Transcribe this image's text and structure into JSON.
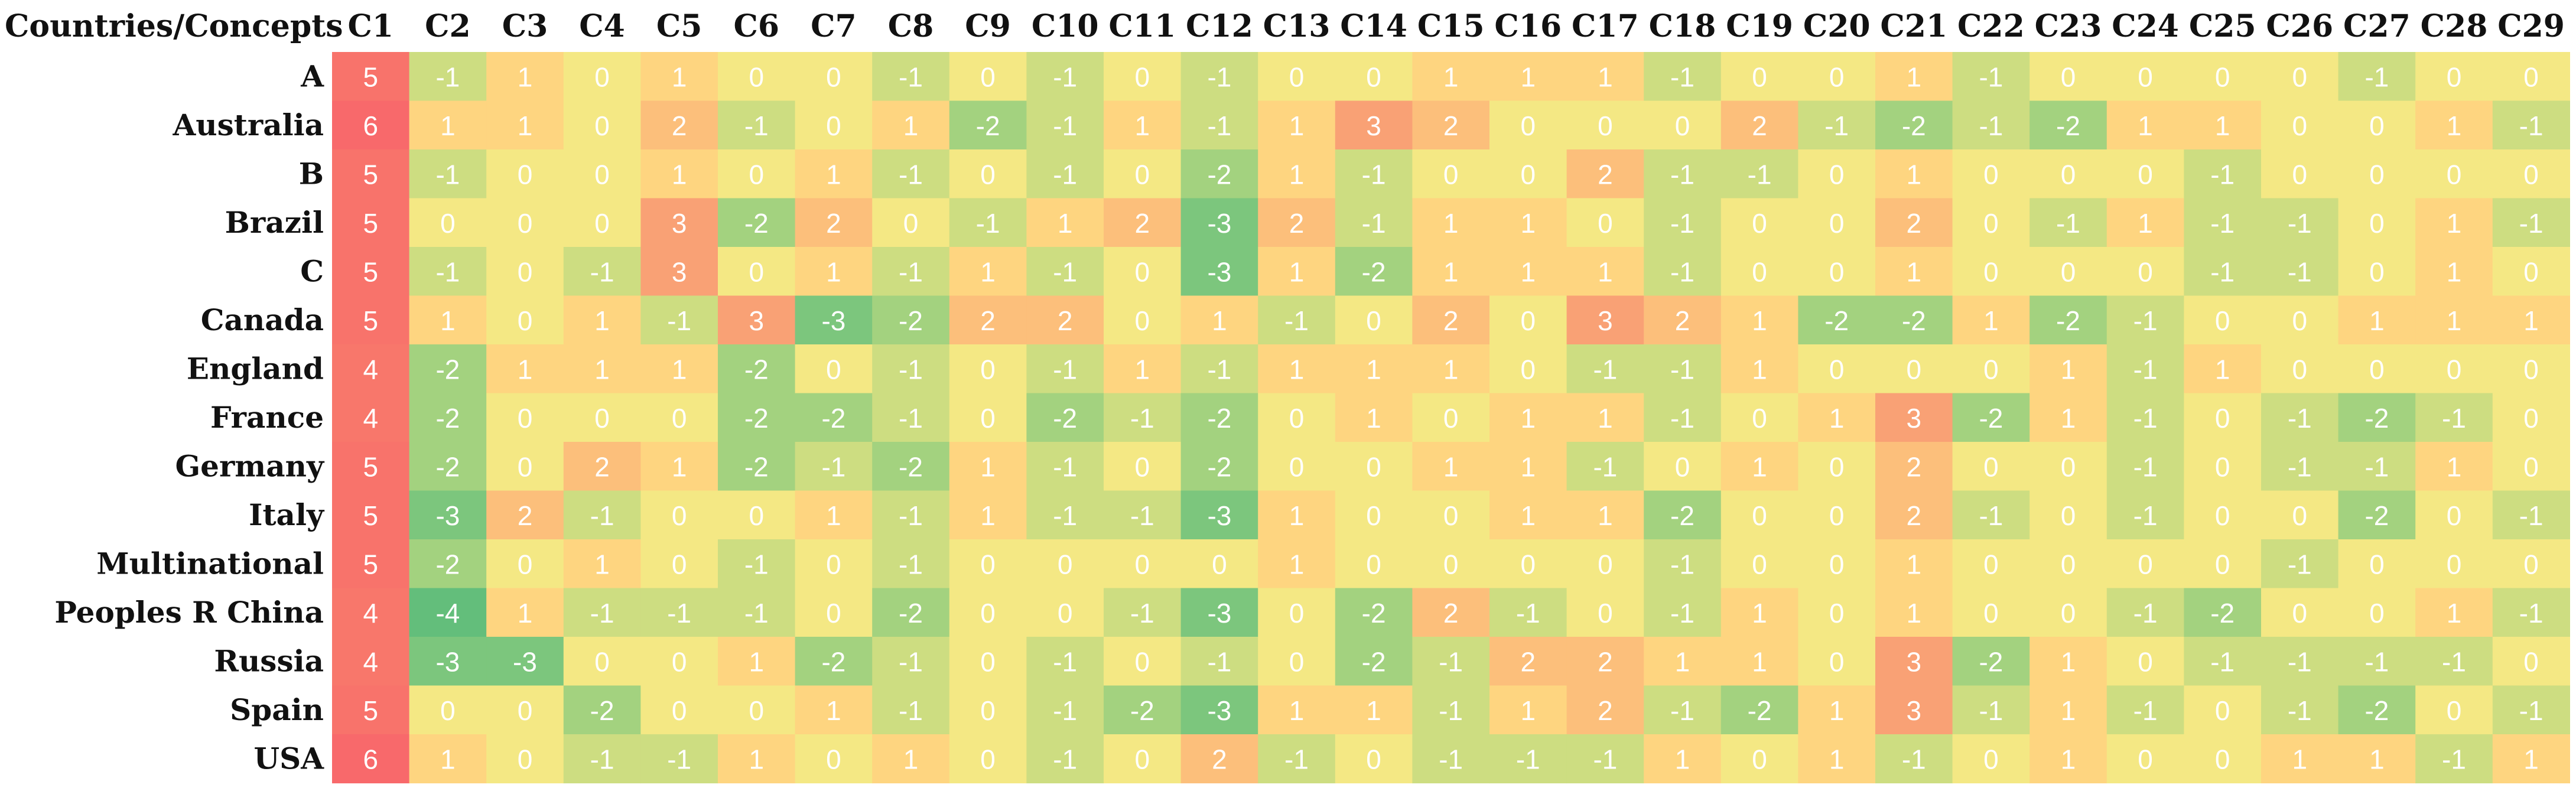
{
  "chart_data": {
    "type": "heatmap",
    "corner_label": "Countries/Concepts",
    "columns": [
      "C1",
      "C2",
      "C3",
      "C4",
      "C5",
      "C6",
      "C7",
      "C8",
      "C9",
      "C10",
      "C11",
      "C12",
      "C13",
      "C14",
      "C15",
      "C16",
      "C17",
      "C18",
      "C19",
      "C20",
      "C21",
      "C22",
      "C23",
      "C24",
      "C25",
      "C26",
      "C27",
      "C28",
      "C29"
    ],
    "rows": [
      "A",
      "Australia",
      "B",
      "Brazil",
      "C",
      "Canada",
      "England",
      "France",
      "Germany",
      "Italy",
      "Multinational",
      "Peoples R China",
      "Russia",
      "Spain",
      "USA"
    ],
    "values": [
      [
        5,
        -1,
        1,
        0,
        1,
        0,
        0,
        -1,
        0,
        -1,
        0,
        -1,
        0,
        0,
        1,
        1,
        1,
        -1,
        0,
        0,
        1,
        -1,
        0,
        0,
        0,
        0,
        -1,
        0,
        0
      ],
      [
        6,
        1,
        1,
        0,
        2,
        -1,
        0,
        1,
        -2,
        -1,
        1,
        -1,
        1,
        3,
        2,
        0,
        0,
        0,
        2,
        -1,
        -2,
        -1,
        -2,
        1,
        1,
        0,
        0,
        1,
        -1
      ],
      [
        5,
        -1,
        0,
        0,
        1,
        0,
        1,
        -1,
        0,
        -1,
        0,
        -2,
        1,
        -1,
        0,
        0,
        2,
        -1,
        -1,
        0,
        1,
        0,
        0,
        0,
        -1,
        0,
        0,
        0,
        0
      ],
      [
        5,
        0,
        0,
        0,
        3,
        -2,
        2,
        0,
        -1,
        1,
        2,
        -3,
        2,
        -1,
        1,
        1,
        0,
        -1,
        0,
        0,
        2,
        0,
        -1,
        1,
        -1,
        -1,
        0,
        1,
        -1
      ],
      [
        5,
        -1,
        0,
        -1,
        3,
        0,
        1,
        -1,
        1,
        -1,
        0,
        -3,
        1,
        -2,
        1,
        1,
        1,
        -1,
        0,
        0,
        1,
        0,
        0,
        0,
        -1,
        -1,
        0,
        1,
        0
      ],
      [
        5,
        1,
        0,
        1,
        -1,
        3,
        -3,
        -2,
        2,
        2,
        0,
        1,
        -1,
        0,
        2,
        0,
        3,
        2,
        1,
        -2,
        -2,
        1,
        -2,
        -1,
        0,
        0,
        1,
        1,
        1
      ],
      [
        4,
        -2,
        1,
        1,
        1,
        -2,
        0,
        -1,
        0,
        -1,
        1,
        -1,
        1,
        1,
        1,
        0,
        -1,
        -1,
        1,
        0,
        0,
        0,
        1,
        -1,
        1,
        0,
        0,
        0,
        0
      ],
      [
        4,
        -2,
        0,
        0,
        0,
        -2,
        -2,
        -1,
        0,
        -2,
        -1,
        -2,
        0,
        1,
        0,
        1,
        1,
        -1,
        0,
        1,
        3,
        -2,
        1,
        -1,
        0,
        -1,
        -2,
        -1,
        0
      ],
      [
        5,
        -2,
        0,
        2,
        1,
        -2,
        -1,
        -2,
        1,
        -1,
        0,
        -2,
        0,
        0,
        1,
        1,
        -1,
        0,
        1,
        0,
        2,
        0,
        0,
        -1,
        0,
        -1,
        -1,
        1,
        0
      ],
      [
        5,
        -3,
        2,
        -1,
        0,
        0,
        1,
        -1,
        1,
        -1,
        -1,
        -3,
        1,
        0,
        0,
        1,
        1,
        -2,
        0,
        0,
        2,
        -1,
        0,
        -1,
        0,
        0,
        -2,
        0,
        -1
      ],
      [
        5,
        -2,
        0,
        1,
        0,
        -1,
        0,
        -1,
        0,
        0,
        0,
        0,
        1,
        0,
        0,
        0,
        0,
        -1,
        0,
        0,
        1,
        0,
        0,
        0,
        0,
        -1,
        0,
        0,
        0
      ],
      [
        4,
        -4,
        1,
        -1,
        -1,
        -1,
        0,
        -2,
        0,
        0,
        -1,
        -3,
        0,
        -2,
        2,
        -1,
        0,
        -1,
        1,
        0,
        1,
        0,
        0,
        -1,
        -2,
        0,
        0,
        1,
        -1
      ],
      [
        4,
        -3,
        -3,
        0,
        0,
        1,
        -2,
        -1,
        0,
        -1,
        0,
        -1,
        0,
        -2,
        -1,
        2,
        2,
        1,
        1,
        0,
        3,
        -2,
        1,
        0,
        -1,
        -1,
        -1,
        -1,
        0
      ],
      [
        5,
        0,
        0,
        -2,
        0,
        0,
        1,
        -1,
        0,
        -1,
        -2,
        -3,
        1,
        1,
        -1,
        1,
        2,
        -1,
        -2,
        1,
        3,
        -1,
        1,
        -1,
        0,
        -1,
        -2,
        0,
        -1
      ],
      [
        6,
        1,
        0,
        -1,
        -1,
        1,
        0,
        1,
        0,
        -1,
        0,
        2,
        -1,
        0,
        -1,
        -1,
        -1,
        1,
        0,
        1,
        -1,
        0,
        1,
        0,
        0,
        1,
        1,
        -1,
        1
      ]
    ],
    "color_scale": {
      "-4": "#63be7b",
      "-3": "#7cc67d",
      "-2": "#a3d27f",
      "-1": "#cddd81",
      "0": "#f4e884",
      "1": "#fed580",
      "2": "#fcbf7b",
      "3": "#f9a175",
      "4": "#f8776b",
      "5": "#f8736b",
      "6": "#f8696b"
    }
  }
}
